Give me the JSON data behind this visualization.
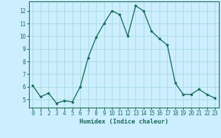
{
  "x": [
    0,
    1,
    2,
    3,
    4,
    5,
    6,
    7,
    8,
    9,
    10,
    11,
    12,
    13,
    14,
    15,
    16,
    17,
    18,
    19,
    20,
    21,
    22,
    23
  ],
  "y": [
    6.1,
    5.2,
    5.5,
    4.7,
    4.9,
    4.8,
    6.0,
    8.3,
    9.9,
    11.0,
    12.0,
    11.7,
    10.0,
    12.4,
    12.0,
    10.4,
    9.8,
    9.3,
    6.3,
    5.4,
    5.4,
    5.8,
    5.4,
    5.1
  ],
  "xlabel": "Humidex (Indice chaleur)",
  "xlim": [
    -0.5,
    23.5
  ],
  "ylim": [
    4.35,
    12.75
  ],
  "yticks": [
    5,
    6,
    7,
    8,
    9,
    10,
    11,
    12
  ],
  "xticks": [
    0,
    1,
    2,
    3,
    4,
    5,
    6,
    7,
    8,
    9,
    10,
    11,
    12,
    13,
    14,
    15,
    16,
    17,
    18,
    19,
    20,
    21,
    22,
    23
  ],
  "line_color": "#1a6b5a",
  "marker_color": "#1a6b5a",
  "bg_color": "#cceeff",
  "grid_major_color": "#aadddd",
  "grid_minor_color": "#bbeeee"
}
